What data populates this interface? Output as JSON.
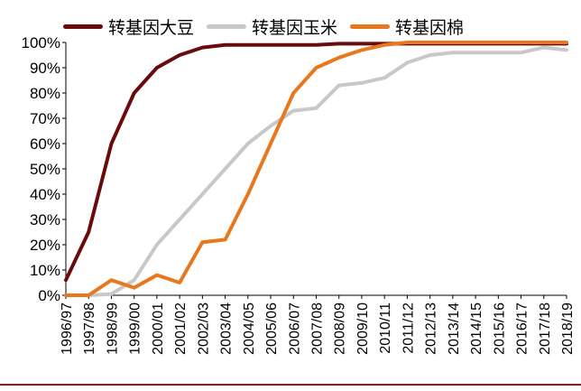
{
  "chart_data": {
    "type": "line",
    "title": "",
    "xlabel": "",
    "ylabel": "",
    "ylim": [
      0,
      100
    ],
    "y_unit": "%",
    "y_ticks": [
      "0%",
      "10%",
      "20%",
      "30%",
      "40%",
      "50%",
      "60%",
      "70%",
      "80%",
      "90%",
      "100%"
    ],
    "grid": false,
    "legend_position": "top",
    "categories": [
      "1996/97",
      "1997/98",
      "1998/99",
      "1999/00",
      "2000/01",
      "2001/02",
      "2002/03",
      "2003/04",
      "2004/05",
      "2005/06",
      "2006/07",
      "2007/08",
      "2008/09",
      "2009/10",
      "2010/11",
      "2011/12",
      "2012/13",
      "2013/14",
      "2014/15",
      "2015/16",
      "2016/17",
      "2017/18",
      "2018/19"
    ],
    "series": [
      {
        "name": "转基因大豆",
        "color": "#6b0a0a",
        "values": [
          6,
          25,
          60,
          80,
          90,
          95,
          98,
          99,
          99,
          99,
          99,
          99,
          99.5,
          99.5,
          99.5,
          99.5,
          99.5,
          99.5,
          99.5,
          99.5,
          99.5,
          99.5,
          99.5
        ]
      },
      {
        "name": "转基因玉米",
        "color": "#c8c8c8",
        "values": [
          0,
          0,
          0.5,
          6,
          20,
          30,
          40,
          50,
          60,
          67,
          73,
          74,
          83,
          84,
          86,
          92,
          95,
          96,
          96,
          96,
          96,
          98,
          97
        ]
      },
      {
        "name": "转基因棉",
        "color": "#e8781e",
        "values": [
          0,
          0,
          6,
          3,
          8,
          5,
          21,
          22,
          40,
          60,
          80,
          90,
          94,
          97,
          99,
          100,
          100,
          100,
          100,
          100,
          100,
          100,
          100
        ]
      }
    ]
  }
}
